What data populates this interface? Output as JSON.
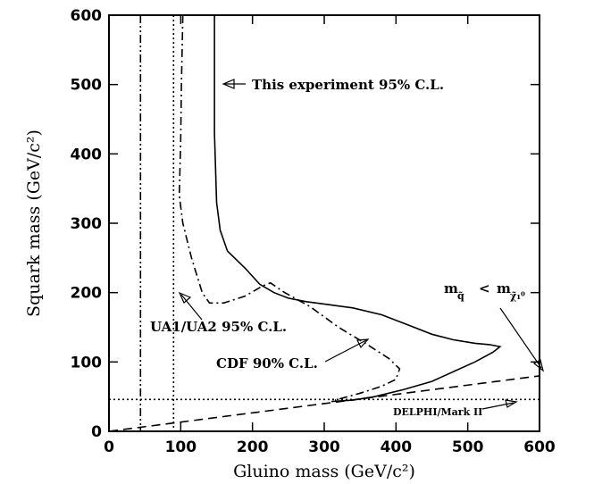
{
  "chart_data": {
    "type": "line",
    "xlabel": "Gluino mass (GeV/c²)",
    "ylabel": "Squark mass (GeV/c²)",
    "xlim": [
      0,
      600
    ],
    "ylim": [
      0,
      600
    ],
    "x_ticks": [
      0,
      100,
      200,
      300,
      400,
      500,
      600
    ],
    "y_ticks": [
      0,
      100,
      200,
      300,
      400,
      500,
      600
    ],
    "grid": false,
    "series": [
      {
        "style": "solid",
        "points": [
          [
            147,
            600
          ],
          [
            147,
            430
          ],
          [
            150,
            330
          ],
          [
            155,
            290
          ],
          [
            165,
            260
          ],
          [
            190,
            235
          ],
          [
            210,
            212
          ],
          [
            230,
            200
          ],
          [
            250,
            192
          ],
          [
            275,
            187
          ],
          [
            310,
            182
          ],
          [
            340,
            178
          ],
          [
            380,
            168
          ],
          [
            420,
            152
          ],
          [
            450,
            140
          ],
          [
            480,
            132
          ],
          [
            510,
            127
          ],
          [
            530,
            125
          ],
          [
            545,
            122
          ],
          [
            535,
            114
          ],
          [
            510,
            100
          ],
          [
            480,
            86
          ],
          [
            450,
            72
          ],
          [
            410,
            60
          ],
          [
            370,
            50
          ],
          [
            340,
            45
          ],
          [
            310,
            43
          ]
        ]
      },
      {
        "style": "dash-dot",
        "points": [
          [
            103,
            600
          ],
          [
            101,
            500
          ],
          [
            100,
            420
          ],
          [
            98,
            340
          ],
          [
            103,
            300
          ],
          [
            115,
            250
          ],
          [
            130,
            200
          ],
          [
            140,
            185
          ],
          [
            160,
            185
          ],
          [
            190,
            195
          ],
          [
            215,
            210
          ],
          [
            225,
            214
          ],
          [
            245,
            200
          ],
          [
            280,
            180
          ],
          [
            320,
            150
          ],
          [
            360,
            125
          ],
          [
            390,
            105
          ],
          [
            405,
            90
          ],
          [
            400,
            75
          ],
          [
            380,
            65
          ],
          [
            350,
            55
          ],
          [
            315,
            45
          ]
        ]
      },
      {
        "style": "dash-dot-dot",
        "points": [
          [
            44,
            600
          ],
          [
            44,
            0
          ]
        ]
      },
      {
        "style": "dotted",
        "points": [
          [
            90,
            600
          ],
          [
            90,
            0
          ]
        ]
      },
      {
        "style": "dotted",
        "points": [
          [
            0,
            46
          ],
          [
            600,
            46
          ]
        ]
      },
      {
        "style": "dashed",
        "points": [
          [
            0,
            0
          ],
          [
            600,
            80
          ]
        ]
      }
    ],
    "annotations": [
      {
        "id": "this_exp",
        "text": "This experiment 95% C.L."
      },
      {
        "id": "ua1",
        "text": "UA1/UA2 95% C.L."
      },
      {
        "id": "cdf",
        "text": "CDF 90% C.L."
      },
      {
        "id": "delphi",
        "text": "DELPHI/Mark II"
      },
      {
        "id": "m_q",
        "text": "m",
        "sub": "q̃"
      },
      {
        "id": "lt",
        "text": "<"
      },
      {
        "id": "m_chi",
        "text": "m",
        "sub": "χ̃₁⁰"
      }
    ]
  }
}
